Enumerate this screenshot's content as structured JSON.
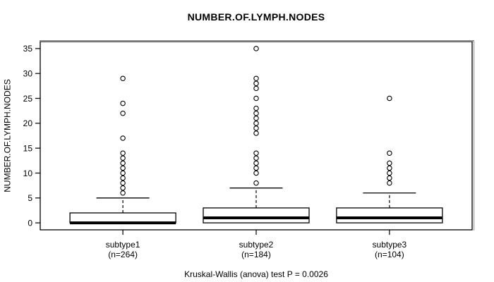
{
  "title": "NUMBER.OF.LYMPH.NODES",
  "y_axis": {
    "label": "NUMBER.OF.LYMPH.NODES",
    "ticks": [
      0,
      5,
      10,
      15,
      20,
      25,
      30,
      35
    ]
  },
  "caption": "Kruskal-Wallis (anova) test P = 0.0026",
  "chart_data": {
    "type": "boxplot",
    "title": "NUMBER.OF.LYMPH.NODES",
    "ylabel": "NUMBER.OF.LYMPH.NODES",
    "xlabel": "",
    "ylim": [
      -1.4,
      36.4
    ],
    "yticks": [
      0,
      5,
      10,
      15,
      20,
      25,
      30,
      35
    ],
    "grid": false,
    "legend": "none",
    "categories": [
      "subtype1",
      "subtype2",
      "subtype3"
    ],
    "groups": [
      {
        "label": "subtype1",
        "n_label": "(n=264)",
        "n": 264,
        "stats": {
          "whisker_low": 0,
          "q1": 0,
          "median": 0,
          "q3": 2,
          "whisker_high": 5
        },
        "outliers": [
          6,
          7,
          8,
          9,
          10,
          11,
          12,
          13,
          14,
          17,
          22,
          24,
          29
        ]
      },
      {
        "label": "subtype2",
        "n_label": "(n=184)",
        "n": 184,
        "stats": {
          "whisker_low": 0,
          "q1": 0,
          "median": 1,
          "q3": 3,
          "whisker_high": 7
        },
        "outliers": [
          8,
          10,
          11,
          12,
          13,
          14,
          18,
          19,
          20,
          21,
          22,
          23,
          25,
          27,
          28,
          29,
          35
        ]
      },
      {
        "label": "subtype3",
        "n_label": "(n=104)",
        "n": 104,
        "stats": {
          "whisker_low": 0,
          "q1": 0,
          "median": 1,
          "q3": 3,
          "whisker_high": 6
        },
        "outliers": [
          8,
          9,
          10,
          11,
          12,
          14,
          25
        ]
      }
    ],
    "caption": "Kruskal-Wallis (anova) test P = 0.0026",
    "colors": {
      "line": "#000000",
      "box_fill": "#ffffff",
      "background": "#ffffff"
    }
  }
}
